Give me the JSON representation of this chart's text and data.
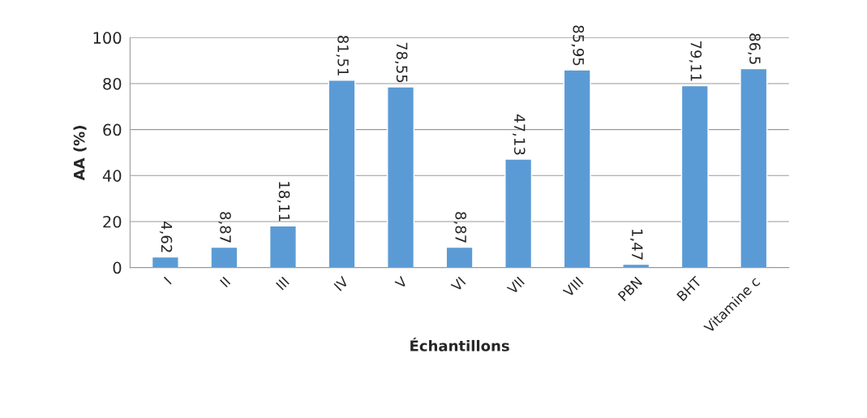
{
  "chart_data": {
    "type": "bar",
    "xlabel": "Échantillons",
    "ylabel": "AA (%)",
    "categories": [
      "I",
      "II",
      "III",
      "IV",
      "V",
      "VI",
      "VII",
      "VIII",
      "PBN",
      "BHT",
      "Vitamine c"
    ],
    "values": [
      4.62,
      8.87,
      18.11,
      81.51,
      78.55,
      8.87,
      47.13,
      85.95,
      1.47,
      79.11,
      86.5
    ],
    "value_labels": [
      "4,62",
      "8,87",
      "18,11",
      "81,51",
      "78,55",
      "8,87",
      "47,13",
      "85,95",
      "1,47",
      "79,11",
      "86,5"
    ],
    "color": "#5b9bd5",
    "ylim": [
      0,
      100
    ],
    "yticks": [
      0,
      20,
      40,
      60,
      80,
      100
    ],
    "grid": "y"
  }
}
